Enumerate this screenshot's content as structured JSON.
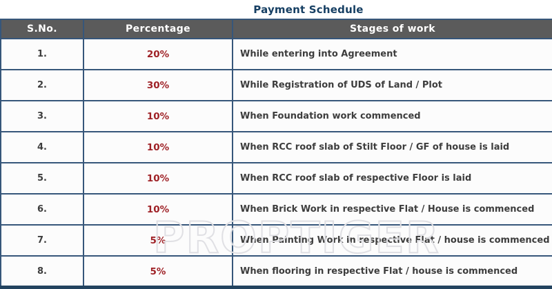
{
  "title": "Payment Schedule",
  "watermark": "PROPTIGER",
  "colors": {
    "title_text": "#163f63",
    "table_border": "#36567a",
    "header_background": "#5b5b5b",
    "header_text": "#ffffff",
    "percentage_text": "#9f2227",
    "body_text": "#3d3d3d",
    "row_background": "#fcfcfc",
    "bottom_bar": "#23435f",
    "watermark_outline": "#e0e0e4"
  },
  "table": {
    "headers": [
      "S.No.",
      "Percentage",
      "Stages of work"
    ],
    "rows": [
      {
        "sno": "1.",
        "percentage": "20%",
        "stage": "While entering into Agreement"
      },
      {
        "sno": "2.",
        "percentage": "30%",
        "stage": "While Registration of UDS of Land / Plot"
      },
      {
        "sno": "3.",
        "percentage": "10%",
        "stage": "When Foundation work commenced"
      },
      {
        "sno": "4.",
        "percentage": "10%",
        "stage": "When RCC roof slab of Stilt Floor / GF of house is laid"
      },
      {
        "sno": "5.",
        "percentage": "10%",
        "stage": "When RCC roof slab of respective Floor is laid"
      },
      {
        "sno": "6.",
        "percentage": "10%",
        "stage": "When Brick Work in respective Flat / House is commenced"
      },
      {
        "sno": "7.",
        "percentage": "5%",
        "stage": "When Painting Work in respective Flat / house is commenced"
      },
      {
        "sno": "8.",
        "percentage": "5%",
        "stage": "When flooring in respective Flat / house is commenced"
      }
    ]
  }
}
